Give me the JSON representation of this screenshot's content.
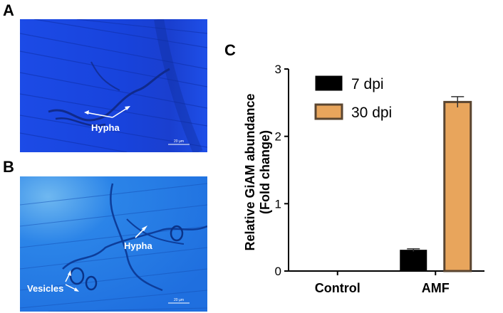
{
  "panels": {
    "a_label": "A",
    "b_label": "B",
    "c_label": "C"
  },
  "micrograph_a": {
    "annotation": "Hypha",
    "scale_label": "20 µm"
  },
  "micrograph_b": {
    "annotation_hypha": "Hypha",
    "annotation_vesicles": "Vesicles",
    "scale_label": "20 µm"
  },
  "colors": {
    "series_7dpi": "#000000",
    "series_30dpi": "#e8a55c",
    "bar_edge_30dpi": "#5a4530",
    "micro_a": "#1a46e0",
    "micro_b": "#2a7ee6"
  },
  "chart_data": {
    "type": "bar",
    "categories": [
      "Control",
      "AMF"
    ],
    "series": [
      {
        "name": "7 dpi",
        "values": [
          0,
          0.31
        ],
        "errors": [
          0,
          0.02
        ]
      },
      {
        "name": "30 dpi",
        "values": [
          0,
          2.51
        ],
        "errors": [
          0,
          0.08
        ]
      }
    ],
    "title": "",
    "xlabel": "",
    "ylabel_line1": "Relative GiAM abundance",
    "ylabel_line2": "(Fold change)",
    "ylim": [
      0,
      3
    ],
    "yticks": [
      "0",
      "1",
      "2",
      "3"
    ],
    "legend_position": "top-left",
    "grid": false
  }
}
